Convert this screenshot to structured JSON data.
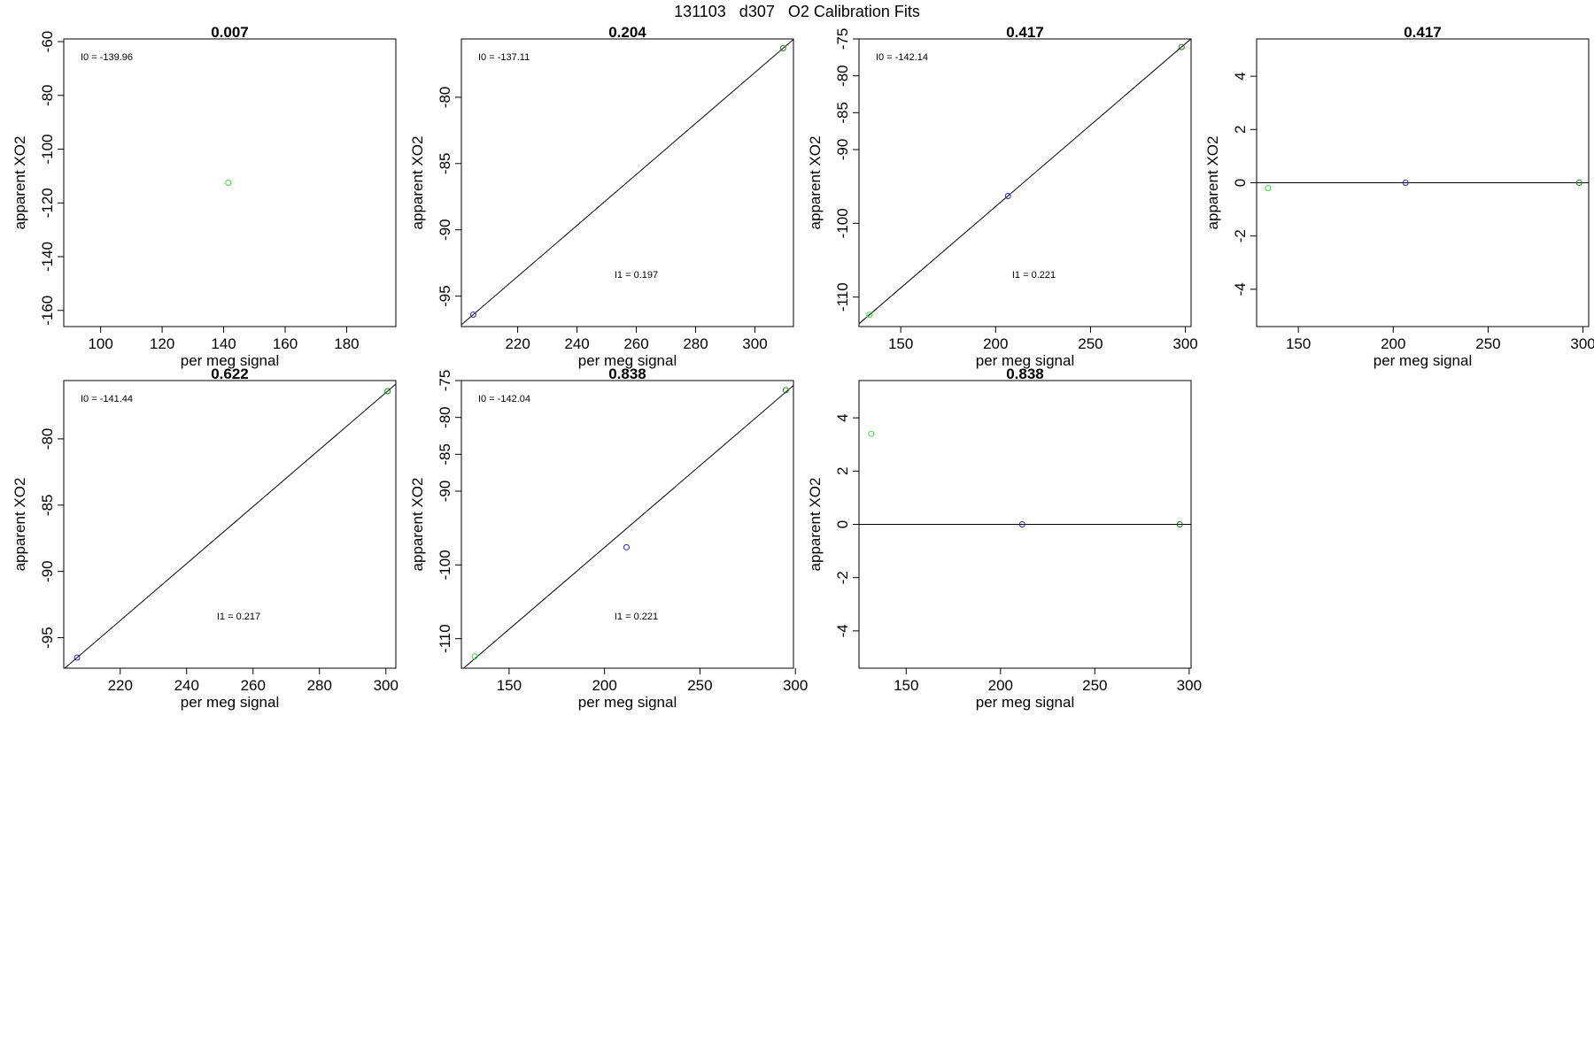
{
  "figure_title": "131103   d307   O2 Calibration Fits",
  "colors": {
    "green": "#32e032",
    "blue": "#2222cc",
    "darkgreen": "#1f7a1f",
    "line": "#000000"
  },
  "chart_data": [
    {
      "type": "scatter",
      "title": "0.007",
      "xlabel": "per meg signal",
      "ylabel": "apparent XO2",
      "xlim": [
        88,
        196
      ],
      "ylim": [
        -166,
        -59
      ],
      "xticks": [
        100,
        120,
        140,
        160,
        180
      ],
      "yticks": [
        -60,
        -80,
        -100,
        -120,
        -140,
        -160
      ],
      "points": [
        {
          "x": 141.5,
          "y": -112.5,
          "color": "green"
        }
      ],
      "line": null,
      "annotations": [
        {
          "label": "I0 =  -139.96",
          "pos": "top-left"
        }
      ]
    },
    {
      "type": "scatter",
      "title": "0.204",
      "xlabel": "per meg signal",
      "ylabel": "apparent XO2",
      "xlim": [
        201,
        313
      ],
      "ylim": [
        -97.3,
        -75.6
      ],
      "xticks": [
        220,
        240,
        260,
        280,
        300
      ],
      "yticks": [
        -80,
        -85,
        -90,
        -95
      ],
      "points": [
        {
          "x": 205,
          "y": -96.4,
          "color": "blue"
        },
        {
          "x": 309.5,
          "y": -76.3,
          "color": "darkgreen"
        }
      ],
      "line": {
        "slope": 0.1923,
        "intercept": -135.82
      },
      "annotations": [
        {
          "label": "I0 =  -137.11",
          "pos": "top-left"
        },
        {
          "label": "I1 =  0.197",
          "pos": "middle"
        }
      ]
    },
    {
      "type": "scatter",
      "title": "0.417",
      "xlabel": "per meg signal",
      "ylabel": "apparent XO2",
      "xlim": [
        128,
        303
      ],
      "ylim": [
        -114,
        -75
      ],
      "xticks": [
        150,
        200,
        250,
        300
      ],
      "yticks": [
        -75,
        -80,
        -85,
        -90,
        -100,
        -110
      ],
      "points": [
        {
          "x": 133.5,
          "y": -112.4,
          "color": "green"
        },
        {
          "x": 206.5,
          "y": -96.3,
          "color": "blue"
        },
        {
          "x": 298,
          "y": -76.1,
          "color": "darkgreen"
        }
      ],
      "line": {
        "slope": 0.2208,
        "intercept": -141.88
      },
      "annotations": [
        {
          "label": "I0 =  -142.14",
          "pos": "top-left"
        },
        {
          "label": "I1 =  0.221",
          "pos": "middle"
        }
      ]
    },
    {
      "type": "scatter",
      "title": "0.417",
      "xlabel": "per meg signal",
      "ylabel": "apparent XO2",
      "xlim": [
        128,
        303
      ],
      "ylim": [
        -5.4,
        5.4
      ],
      "xticks": [
        150,
        200,
        250,
        300
      ],
      "yticks": [
        4,
        2,
        0,
        -2,
        -4
      ],
      "points": [
        {
          "x": 134,
          "y": -0.2,
          "color": "green"
        },
        {
          "x": 206.5,
          "y": 0,
          "color": "blue"
        },
        {
          "x": 298,
          "y": 0,
          "color": "darkgreen"
        }
      ],
      "hline": 0,
      "annotations": []
    },
    {
      "type": "scatter",
      "title": "0.622",
      "xlabel": "per meg signal",
      "ylabel": "apparent XO2",
      "xlim": [
        203,
        303
      ],
      "ylim": [
        -97.3,
        -75.6
      ],
      "xticks": [
        220,
        240,
        260,
        280,
        300
      ],
      "yticks": [
        -80,
        -85,
        -90,
        -95
      ],
      "points": [
        {
          "x": 207,
          "y": -96.5,
          "color": "blue"
        },
        {
          "x": 300.5,
          "y": -76.4,
          "color": "darkgreen"
        }
      ],
      "line": {
        "slope": 0.215,
        "intercept": -141.01
      },
      "annotations": [
        {
          "label": "I0 =  -141.44",
          "pos": "top-left"
        },
        {
          "label": "I1 =  0.217",
          "pos": "middle"
        }
      ]
    },
    {
      "type": "scatter",
      "title": "0.838",
      "xlabel": "per meg signal",
      "ylabel": "apparent XO2",
      "xlim": [
        125,
        299
      ],
      "ylim": [
        -114,
        -75
      ],
      "xticks": [
        150,
        200,
        250,
        300
      ],
      "yticks": [
        -75,
        -80,
        -85,
        -90,
        -100,
        -110
      ],
      "points": [
        {
          "x": 132,
          "y": -112.4,
          "color": "green"
        },
        {
          "x": 211.5,
          "y": -97.6,
          "color": "blue"
        },
        {
          "x": 295,
          "y": -76.3,
          "color": "darkgreen"
        }
      ],
      "line": {
        "slope": 0.2218,
        "intercept": -141.99
      },
      "annotations": [
        {
          "label": "I0 =  -142.04",
          "pos": "top-left"
        },
        {
          "label": "I1 =  0.221",
          "pos": "middle"
        }
      ]
    },
    {
      "type": "scatter",
      "title": "0.838",
      "xlabel": "per meg signal",
      "ylabel": "apparent XO2",
      "xlim": [
        125,
        301
      ],
      "ylim": [
        -5.4,
        5.4
      ],
      "xticks": [
        150,
        200,
        250,
        300
      ],
      "yticks": [
        4,
        2,
        0,
        -2,
        -4
      ],
      "points": [
        {
          "x": 131.5,
          "y": 3.4,
          "color": "green"
        },
        {
          "x": 211.5,
          "y": 0,
          "color": "blue"
        },
        {
          "x": 295,
          "y": 0,
          "color": "darkgreen"
        }
      ],
      "hline": 0,
      "annotations": []
    }
  ]
}
